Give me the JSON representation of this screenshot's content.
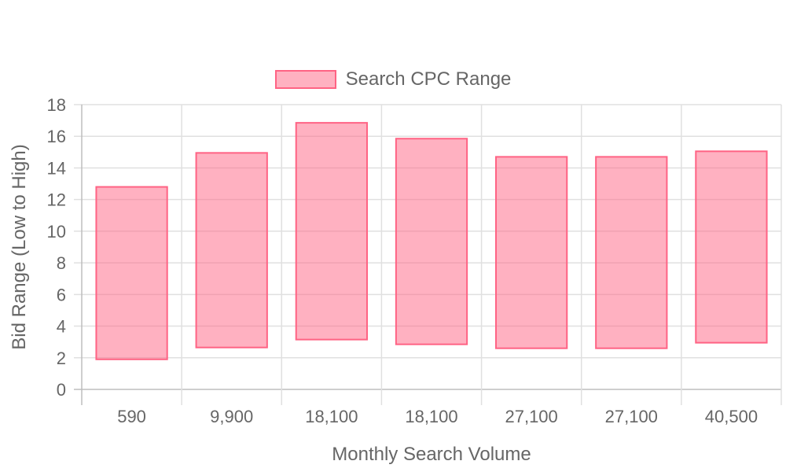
{
  "colors": {
    "bar_fill": "rgba(255, 99, 132, 0.5)",
    "bar_stroke": "#ff6384",
    "grid": "#e0e0e0",
    "axis": "#bdbdbd",
    "text": "#666666"
  },
  "chart_data": {
    "type": "bar",
    "subtype": "floating-range",
    "categories": [
      "590",
      "9,900",
      "18,100",
      "18,100",
      "27,100",
      "27,100",
      "40,500"
    ],
    "series": [
      {
        "name": "Search CPC Range",
        "ranges": [
          [
            1.9,
            12.8
          ],
          [
            2.65,
            14.95
          ],
          [
            3.15,
            16.85
          ],
          [
            2.85,
            15.85
          ],
          [
            2.6,
            14.7
          ],
          [
            2.6,
            14.7
          ],
          [
            2.95,
            15.05
          ]
        ]
      }
    ],
    "xlabel": "Monthly Search Volume",
    "ylabel": "Bid Range (Low to High)",
    "ylim": [
      0,
      18
    ],
    "yticks": [
      0,
      2,
      4,
      6,
      8,
      10,
      12,
      14,
      16,
      18
    ],
    "grid": true,
    "legend_position": "top-center"
  }
}
